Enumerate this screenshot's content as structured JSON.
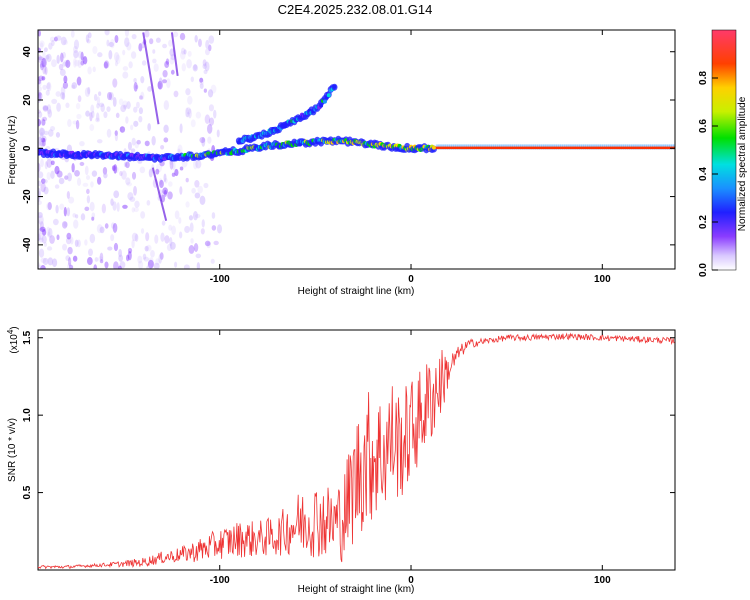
{
  "title": "C2E4.2025.232.08.01.G14",
  "chart_data": [
    {
      "type": "heatmap",
      "xlabel": "Height of straight line (km)",
      "ylabel": "Frequency (Hz)",
      "xlim": [
        -195,
        138
      ],
      "ylim": [
        -50,
        49
      ],
      "xticks": [
        -100,
        0,
        100
      ],
      "yticks": [
        -40,
        -20,
        0,
        20,
        40
      ],
      "colorbar": {
        "label": "Normalized spectral amplitude",
        "range": [
          0,
          1
        ],
        "ticks": [
          0.0,
          0.2,
          0.4,
          0.6,
          0.8
        ]
      },
      "ridges": [
        {
          "name": "main",
          "x": [
            -195,
            -160,
            -130,
            -110,
            -90,
            -75,
            -60,
            -45,
            -35,
            -25,
            -15,
            0,
            10,
            20,
            40,
            80,
            120,
            138
          ],
          "y": [
            -2,
            -3,
            -4,
            -3,
            -1,
            1,
            2,
            3,
            3,
            2,
            1,
            0,
            0,
            0,
            0,
            0,
            0,
            0
          ]
        },
        {
          "name": "upper-branch",
          "x": [
            -90,
            -80,
            -70,
            -60,
            -50,
            -45,
            -40
          ],
          "y": [
            3,
            5,
            8,
            12,
            16,
            20,
            26
          ]
        }
      ]
    },
    {
      "type": "line",
      "xlabel": "Height of straight line (km)",
      "ylabel": "SNR (10 * v/v)",
      "y_multiplier": "(x10",
      "y_multiplier_exp": "4",
      "xlim": [
        -195,
        138
      ],
      "ylim": [
        0,
        1.55
      ],
      "xticks": [
        -100,
        0,
        100
      ],
      "yticks": [
        0.5,
        1.0,
        1.5
      ],
      "series": [
        {
          "name": "SNR",
          "color": "#ee3333",
          "x": [
            -195,
            -180,
            -165,
            -150,
            -140,
            -130,
            -120,
            -110,
            -100,
            -90,
            -80,
            -70,
            -60,
            -50,
            -40,
            -35,
            -30,
            -25,
            -20,
            -15,
            -10,
            -5,
            0,
            5,
            10,
            15,
            20,
            25,
            30,
            40,
            50,
            60,
            80,
            100,
            120,
            138
          ],
          "y": [
            0.02,
            0.02,
            0.03,
            0.04,
            0.05,
            0.08,
            0.1,
            0.13,
            0.17,
            0.2,
            0.2,
            0.22,
            0.3,
            0.33,
            0.3,
            0.35,
            0.55,
            0.7,
            0.75,
            0.75,
            0.85,
            0.8,
            0.9,
            1.0,
            1.1,
            1.2,
            1.3,
            1.4,
            1.46,
            1.48,
            1.5,
            1.5,
            1.51,
            1.5,
            1.49,
            1.48
          ],
          "noise": [
            0.01,
            0.01,
            0.01,
            0.02,
            0.03,
            0.04,
            0.05,
            0.08,
            0.1,
            0.12,
            0.12,
            0.13,
            0.2,
            0.25,
            0.25,
            0.3,
            0.4,
            0.45,
            0.45,
            0.4,
            0.4,
            0.35,
            0.35,
            0.3,
            0.3,
            0.25,
            0.1,
            0.05,
            0.03,
            0.02,
            0.02,
            0.02,
            0.02,
            0.02,
            0.02,
            0.02
          ]
        }
      ]
    }
  ]
}
